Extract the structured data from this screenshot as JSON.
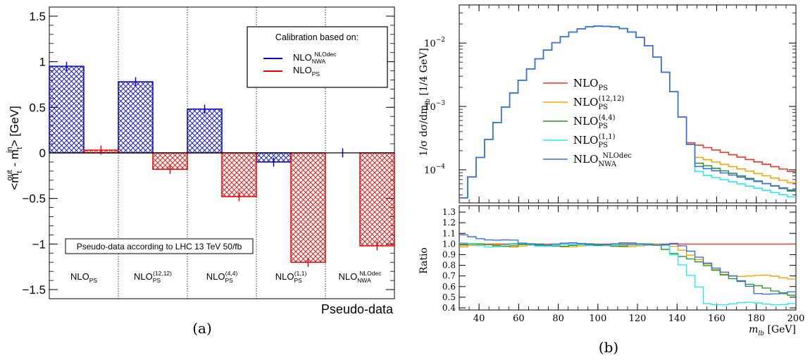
{
  "chart_data": [
    {
      "panel": "(a)",
      "type": "bar",
      "ylabel": {
        "main": "<m",
        "sup1": "out",
        "sub1": "t",
        "mid": "- m",
        "sup2": "in",
        "sub2": "t",
        "end": "> [GeV]"
      },
      "xlabel": "Pseudo-data",
      "ylim": [
        -1.6,
        1.6
      ],
      "yticks": [
        1.5,
        1,
        0.5,
        0,
        -0.5,
        -1,
        -1.5
      ],
      "ytick_labels": [
        "1.5",
        "1",
        "0.5",
        "0",
        "−0.5",
        "−1",
        "−1.5"
      ],
      "categories": [
        {
          "main": "NLO",
          "sub": "PS",
          "sup": ""
        },
        {
          "main": "NLO",
          "sub": "PS",
          "sup": "(12,12)"
        },
        {
          "main": "NLO",
          "sub": "PS",
          "sup": "(4,4)"
        },
        {
          "main": "NLO",
          "sub": "PS",
          "sup": "(1,1)"
        },
        {
          "main": "NLO",
          "sub": "NWA",
          "sup": "NLOdec"
        }
      ],
      "legend_title": "Calibration based on:",
      "series": [
        {
          "name": {
            "main": "NLO",
            "sub": "NWA",
            "sup": "NLOdec"
          },
          "color": "#0000cc",
          "values": [
            0.95,
            0.78,
            0.48,
            -0.1,
            0.0
          ],
          "errors": [
            0.05,
            0.05,
            0.05,
            0.05,
            0.05
          ]
        },
        {
          "name": {
            "main": "NLO",
            "sub": "PS",
            "sup": ""
          },
          "color": "#ee0000",
          "values": [
            0.03,
            -0.18,
            -0.48,
            -1.2,
            -1.02
          ],
          "errors": [
            0.05,
            0.05,
            0.05,
            0.05,
            0.05
          ]
        }
      ],
      "annotation": "Pseudo-data according to LHC 13 TeV 50/fb",
      "caption": "(a)"
    },
    {
      "panel": "(b)",
      "type": "line",
      "xlabel": {
        "sym": "m",
        "sub": "lb",
        "unit": " [GeV]"
      },
      "ylabel_top": "1/σ dσ/dm",
      "ylabel_top_sub": "lb",
      "ylabel_top_unit": "[1/4 GeV]",
      "ylabel_bottom": "Ratio",
      "xlim": [
        30,
        200
      ],
      "xticks": [
        40,
        60,
        80,
        100,
        120,
        140,
        160,
        180,
        200
      ],
      "ylim_top": [
        3e-05,
        0.04
      ],
      "yscale_top": "log",
      "yticks_top": [
        0.01,
        0.001,
        0.0001
      ],
      "ytick_labels_top": [
        {
          "base": "10",
          "exp": "−2"
        },
        {
          "base": "10",
          "exp": "−3"
        },
        {
          "base": "10",
          "exp": "−4"
        }
      ],
      "ylim_bottom": [
        0.38,
        1.36
      ],
      "yticks_bottom": [
        1.3,
        1.2,
        1.1,
        1.0,
        0.9,
        0.8,
        0.7,
        0.6,
        0.5,
        0.4
      ],
      "ytick_labels_bottom": [
        "1.3",
        "1.2",
        "1.1",
        "1.0",
        "0.9",
        "0.8",
        "0.7",
        "0.6",
        "0.5",
        "0.4"
      ],
      "legend": [
        {
          "main": "NLO",
          "sub": "PS",
          "sup": "",
          "color": "#e8372a"
        },
        {
          "main": "NLO",
          "sub": "PS",
          "sup": "(12,12)",
          "color": "#f5a300"
        },
        {
          "main": "NLO",
          "sub": "PS",
          "sup": "(4,4)",
          "color": "#2a9a2a"
        },
        {
          "main": "NLO",
          "sub": "PS",
          "sup": "(1,1)",
          "color": "#29e8ee"
        },
        {
          "main": "NLO",
          "sub": "NWA",
          "sup": "NLOdec",
          "color": "#3d6ee0"
        }
      ],
      "caption": "(b)"
    }
  ]
}
